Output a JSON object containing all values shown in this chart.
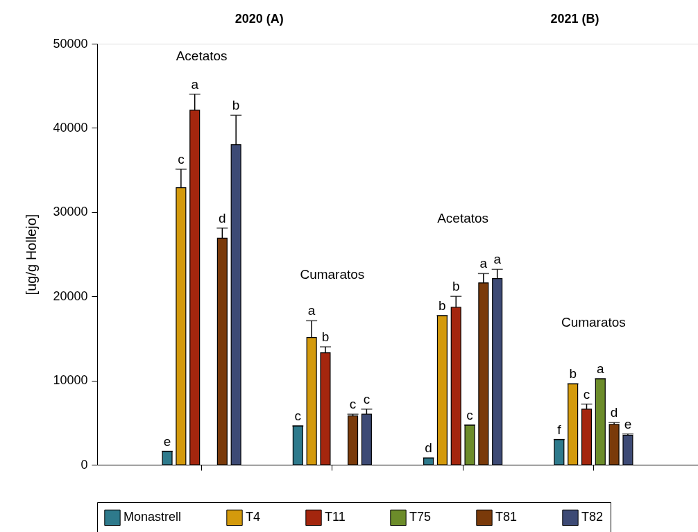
{
  "chart_data": {
    "type": "bar",
    "ylabel": "[ug/g Hollejo]",
    "categories": [
      null,
      null,
      null,
      null
    ],
    "ylim": [
      0,
      50000
    ],
    "yticks": [
      0,
      10000,
      20000,
      30000,
      40000,
      50000
    ],
    "grid": false,
    "legend": "bottom",
    "annotations": [
      "2020 (A)",
      "2021 (B)",
      "Acetatos",
      "Cumaratos",
      "Acetatos",
      "Cumaratos"
    ],
    "series": [
      {
        "name": "Monastrell",
        "color": "#2e7a8c",
        "values": [
          1600,
          4600,
          800,
          3000
        ],
        "errors": [
          null,
          null,
          null,
          null
        ],
        "value_labels": [
          "e",
          "c",
          "d",
          "f"
        ]
      },
      {
        "name": "T4",
        "color": "#d49a0c",
        "values": [
          32900,
          15100,
          17700,
          9600
        ],
        "errors": [
          2200,
          2000,
          null,
          null
        ],
        "value_labels": [
          "c",
          "a",
          "b",
          "b"
        ]
      },
      {
        "name": "T11",
        "color": "#a4260e",
        "values": [
          42100,
          13300,
          18700,
          6600
        ],
        "errors": [
          1900,
          700,
          1300,
          600
        ],
        "value_labels": [
          "a",
          "b",
          "b",
          "c"
        ]
      },
      {
        "name": "T75",
        "color": "#6c8c2a",
        "values": [
          null,
          null,
          4700,
          10200
        ],
        "errors": [
          null,
          null,
          null,
          null
        ],
        "value_labels": [
          null,
          null,
          "c",
          "a"
        ]
      },
      {
        "name": "T81",
        "color": "#7a3a0a",
        "values": [
          26900,
          5800,
          21600,
          4800
        ],
        "errors": [
          1200,
          200,
          1100,
          200
        ],
        "value_labels": [
          "d",
          "c",
          "a",
          "d"
        ]
      },
      {
        "name": "T82",
        "color": "#3d4a75",
        "values": [
          38000,
          6000,
          22100,
          3500
        ],
        "errors": [
          3500,
          600,
          1100,
          150
        ],
        "value_labels": [
          "b",
          "c",
          "a",
          "e"
        ]
      }
    ]
  }
}
